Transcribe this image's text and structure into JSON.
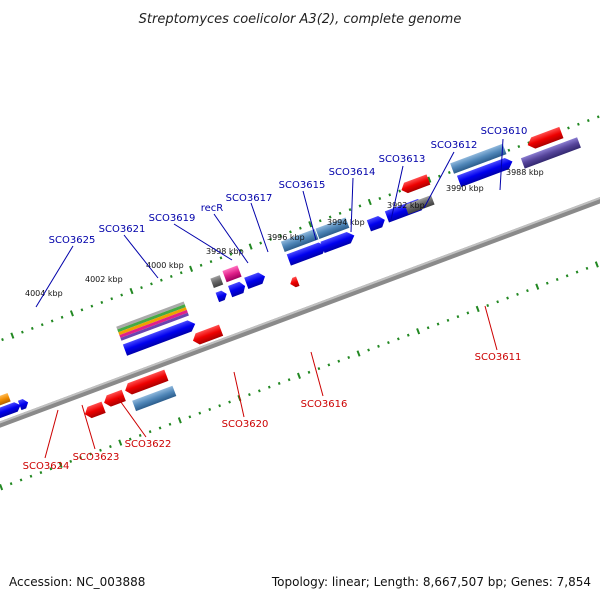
{
  "title": "Streptomyces coelicolor A3(2), complete genome",
  "footer": {
    "accession": "Accession: NC_003888",
    "stats": "Topology: linear; Length: 8,667,507 bp; Genes: 7,854"
  },
  "colors": {
    "forward_gene": "#0000ee",
    "reverse_gene": "#ee0000",
    "cds_feature": "#4f86b8",
    "backbone": "#8a8a8a",
    "ruler_ticks": "#228822",
    "other_gene": "#666666",
    "trna": "#e0208a",
    "orange_gene": "#f08c00",
    "purple_gene": "#55449a"
  },
  "ruler": {
    "top_labels": [
      "4004 kbp",
      "4002 kbp",
      "4000 kbp",
      "3998 kbp",
      "3996 kbp",
      "3994 kbp",
      "3992 kbp",
      "3990 kbp",
      "3988 kbp"
    ],
    "top_positions_kbp": [
      4004,
      4002,
      4000,
      3998,
      3996,
      3994,
      3992,
      3990,
      3988
    ]
  },
  "labels_top": [
    "SCO3625",
    "SCO3621",
    "SCO3619",
    "recR",
    "SCO3617",
    "SCO3615",
    "SCO3614",
    "SCO3613",
    "SCO3612",
    "SCO3610"
  ],
  "labels_bottom": [
    "SCO3624",
    "SCO3623",
    "SCO3622",
    "SCO3620",
    "SCO3616",
    "SCO3611"
  ]
}
